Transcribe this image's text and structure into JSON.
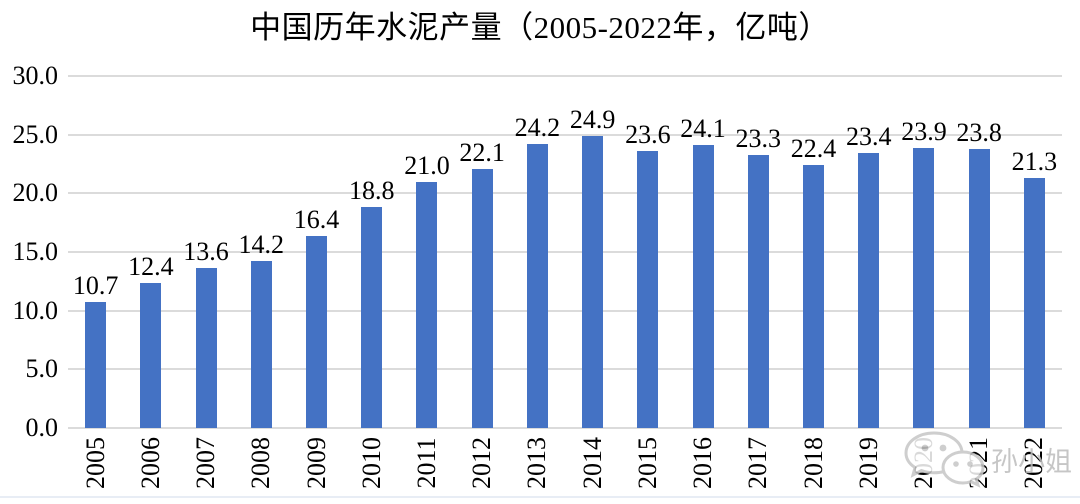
{
  "page": {
    "background": "#ffffff",
    "divider_color": "#e8edf5"
  },
  "chart_data": {
    "type": "bar",
    "title": "中国历年水泥产量（2005-2022年，亿吨）",
    "categories": [
      "2005",
      "2006",
      "2007",
      "2008",
      "2009",
      "2010",
      "2011",
      "2012",
      "2013",
      "2014",
      "2015",
      "2016",
      "2017",
      "2018",
      "2019",
      "2020",
      "2021",
      "2022"
    ],
    "values": [
      10.7,
      12.4,
      13.6,
      14.2,
      16.4,
      18.8,
      21.0,
      22.1,
      24.2,
      24.9,
      23.6,
      24.1,
      23.3,
      22.4,
      23.4,
      23.9,
      23.8,
      21.3
    ],
    "value_labels": [
      "10.7",
      "12.4",
      "13.6",
      "14.2",
      "16.4",
      "18.8",
      "21.0",
      "22.1",
      "24.2",
      "24.9",
      "23.6",
      "24.1",
      "23.3",
      "22.4",
      "23.4",
      "23.9",
      "23.8",
      "21.3"
    ],
    "xlabel": "",
    "ylabel": "",
    "ylim": [
      0,
      30
    ],
    "ytick_values": [
      0,
      5,
      10,
      15,
      20,
      25,
      30
    ],
    "ytick_labels": [
      "0.0",
      "5.0",
      "10.0",
      "15.0",
      "20.0",
      "25.0",
      "30.0"
    ],
    "grid": true,
    "legend": "none",
    "bar_color": "#4472C4",
    "gridline_color": "#DBDBDB",
    "text_color": "#000000"
  },
  "watermark": {
    "icon": "wechat-icon",
    "text": "孙小姐",
    "color": "#bdbdbd"
  }
}
